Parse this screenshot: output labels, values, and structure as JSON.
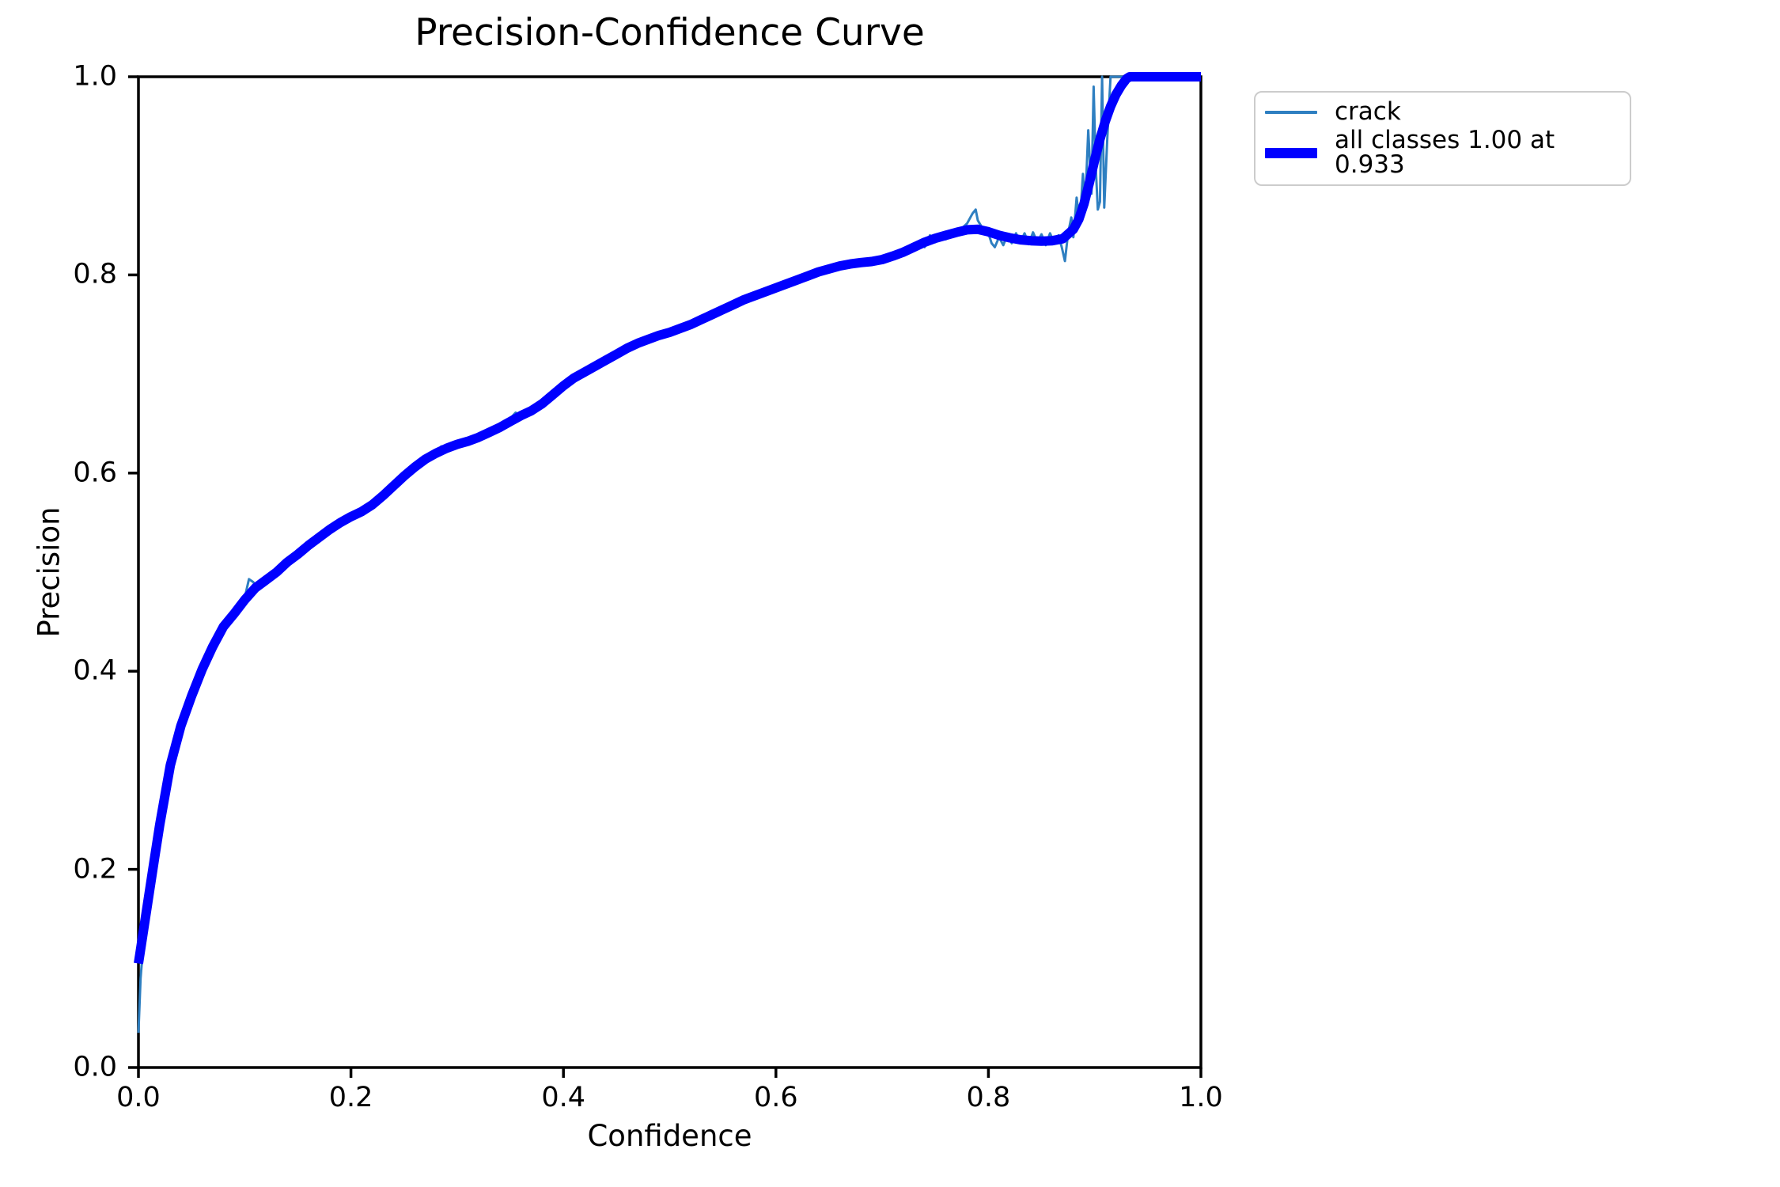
{
  "chart_data": {
    "type": "line",
    "title": "Precision-Confidence Curve",
    "xlabel": "Confidence",
    "ylabel": "Precision",
    "xlim": [
      0,
      1
    ],
    "ylim": [
      0,
      1
    ],
    "xticks": [
      "0.0",
      "0.2",
      "0.4",
      "0.6",
      "0.8",
      "1.0"
    ],
    "yticks": [
      "0.0",
      "0.2",
      "0.4",
      "0.6",
      "0.8",
      "1.0"
    ],
    "grid": false,
    "legend": {
      "position": "upper-right-outside",
      "entries": [
        {
          "label": "crack",
          "color": "#2e7fc1",
          "weight": "thin"
        },
        {
          "label": "all classes 1.00 at 0.933",
          "color": "#0000ff",
          "weight": "thick"
        }
      ]
    },
    "series": [
      {
        "name": "crack",
        "color": "#2e7fc1",
        "linewidth": 3,
        "points": [
          [
            0,
            0.035
          ],
          [
            0.002,
            0.09
          ],
          [
            0.005,
            0.13
          ],
          [
            0.01,
            0.175
          ],
          [
            0.015,
            0.21
          ],
          [
            0.02,
            0.245
          ],
          [
            0.03,
            0.305
          ],
          [
            0.04,
            0.345
          ],
          [
            0.05,
            0.375
          ],
          [
            0.06,
            0.402
          ],
          [
            0.07,
            0.425
          ],
          [
            0.08,
            0.445
          ],
          [
            0.09,
            0.458
          ],
          [
            0.1,
            0.474
          ],
          [
            0.104,
            0.493
          ],
          [
            0.108,
            0.49
          ],
          [
            0.112,
            0.484
          ],
          [
            0.12,
            0.492
          ],
          [
            0.13,
            0.5
          ],
          [
            0.14,
            0.51
          ],
          [
            0.15,
            0.518
          ],
          [
            0.16,
            0.527
          ],
          [
            0.17,
            0.535
          ],
          [
            0.18,
            0.543
          ],
          [
            0.19,
            0.55
          ],
          [
            0.2,
            0.556
          ],
          [
            0.21,
            0.561
          ],
          [
            0.22,
            0.568
          ],
          [
            0.23,
            0.577
          ],
          [
            0.24,
            0.587
          ],
          [
            0.25,
            0.597
          ],
          [
            0.26,
            0.606
          ],
          [
            0.27,
            0.614
          ],
          [
            0.28,
            0.62
          ],
          [
            0.285,
            0.627
          ],
          [
            0.29,
            0.625
          ],
          [
            0.3,
            0.629
          ],
          [
            0.31,
            0.632
          ],
          [
            0.32,
            0.636
          ],
          [
            0.33,
            0.641
          ],
          [
            0.34,
            0.646
          ],
          [
            0.35,
            0.655
          ],
          [
            0.355,
            0.661
          ],
          [
            0.36,
            0.658
          ],
          [
            0.37,
            0.663
          ],
          [
            0.38,
            0.67
          ],
          [
            0.39,
            0.679
          ],
          [
            0.4,
            0.688
          ],
          [
            0.41,
            0.696
          ],
          [
            0.42,
            0.702
          ],
          [
            0.43,
            0.708
          ],
          [
            0.44,
            0.714
          ],
          [
            0.45,
            0.72
          ],
          [
            0.46,
            0.726
          ],
          [
            0.47,
            0.731
          ],
          [
            0.48,
            0.735
          ],
          [
            0.49,
            0.739
          ],
          [
            0.5,
            0.742
          ],
          [
            0.51,
            0.746
          ],
          [
            0.52,
            0.75
          ],
          [
            0.53,
            0.755
          ],
          [
            0.54,
            0.76
          ],
          [
            0.55,
            0.765
          ],
          [
            0.56,
            0.77
          ],
          [
            0.57,
            0.775
          ],
          [
            0.58,
            0.779
          ],
          [
            0.59,
            0.783
          ],
          [
            0.6,
            0.787
          ],
          [
            0.61,
            0.791
          ],
          [
            0.62,
            0.795
          ],
          [
            0.63,
            0.799
          ],
          [
            0.64,
            0.803
          ],
          [
            0.65,
            0.806
          ],
          [
            0.66,
            0.809
          ],
          [
            0.67,
            0.811
          ],
          [
            0.68,
            0.8125
          ],
          [
            0.69,
            0.8135
          ],
          [
            0.7,
            0.8155
          ],
          [
            0.71,
            0.819
          ],
          [
            0.72,
            0.823
          ],
          [
            0.73,
            0.826
          ],
          [
            0.735,
            0.834
          ],
          [
            0.74,
            0.828
          ],
          [
            0.745,
            0.84
          ],
          [
            0.75,
            0.833
          ],
          [
            0.755,
            0.842
          ],
          [
            0.76,
            0.836
          ],
          [
            0.765,
            0.845
          ],
          [
            0.77,
            0.84
          ],
          [
            0.775,
            0.847
          ],
          [
            0.78,
            0.852
          ],
          [
            0.785,
            0.862
          ],
          [
            0.788,
            0.866
          ],
          [
            0.79,
            0.855
          ],
          [
            0.795,
            0.846
          ],
          [
            0.8,
            0.842
          ],
          [
            0.803,
            0.832
          ],
          [
            0.806,
            0.828
          ],
          [
            0.81,
            0.838
          ],
          [
            0.814,
            0.83
          ],
          [
            0.818,
            0.841
          ],
          [
            0.822,
            0.832
          ],
          [
            0.826,
            0.842
          ],
          [
            0.83,
            0.833
          ],
          [
            0.834,
            0.842
          ],
          [
            0.838,
            0.831
          ],
          [
            0.842,
            0.843
          ],
          [
            0.846,
            0.833
          ],
          [
            0.85,
            0.841
          ],
          [
            0.854,
            0.83
          ],
          [
            0.858,
            0.842
          ],
          [
            0.862,
            0.832
          ],
          [
            0.866,
            0.84
          ],
          [
            0.869,
            0.828
          ],
          [
            0.872,
            0.814
          ],
          [
            0.875,
            0.842
          ],
          [
            0.878,
            0.858
          ],
          [
            0.88,
            0.838
          ],
          [
            0.883,
            0.878
          ],
          [
            0.886,
            0.852
          ],
          [
            0.889,
            0.902
          ],
          [
            0.891,
            0.868
          ],
          [
            0.894,
            0.946
          ],
          [
            0.897,
            0.882
          ],
          [
            0.899,
            0.99
          ],
          [
            0.901,
            0.91
          ],
          [
            0.903,
            0.866
          ],
          [
            0.905,
            0.874
          ],
          [
            0.907,
            1
          ],
          [
            0.909,
            0.868
          ],
          [
            0.912,
            0.94
          ],
          [
            0.915,
            1
          ],
          [
            1,
            1
          ]
        ]
      },
      {
        "name": "all classes",
        "color": "#0000ff",
        "linewidth": 12,
        "points": [
          [
            0,
            0.105
          ],
          [
            0.005,
            0.14
          ],
          [
            0.01,
            0.175
          ],
          [
            0.015,
            0.21
          ],
          [
            0.02,
            0.245
          ],
          [
            0.03,
            0.305
          ],
          [
            0.04,
            0.345
          ],
          [
            0.05,
            0.375
          ],
          [
            0.06,
            0.402
          ],
          [
            0.07,
            0.425
          ],
          [
            0.08,
            0.445
          ],
          [
            0.09,
            0.458
          ],
          [
            0.1,
            0.472
          ],
          [
            0.11,
            0.484
          ],
          [
            0.12,
            0.492
          ],
          [
            0.13,
            0.5
          ],
          [
            0.14,
            0.51
          ],
          [
            0.15,
            0.518
          ],
          [
            0.16,
            0.527
          ],
          [
            0.17,
            0.535
          ],
          [
            0.18,
            0.543
          ],
          [
            0.19,
            0.55
          ],
          [
            0.2,
            0.556
          ],
          [
            0.21,
            0.561
          ],
          [
            0.22,
            0.568
          ],
          [
            0.23,
            0.577
          ],
          [
            0.24,
            0.587
          ],
          [
            0.25,
            0.597
          ],
          [
            0.26,
            0.606
          ],
          [
            0.27,
            0.614
          ],
          [
            0.28,
            0.62
          ],
          [
            0.29,
            0.625
          ],
          [
            0.3,
            0.629
          ],
          [
            0.31,
            0.632
          ],
          [
            0.32,
            0.636
          ],
          [
            0.33,
            0.641
          ],
          [
            0.34,
            0.646
          ],
          [
            0.35,
            0.652
          ],
          [
            0.36,
            0.658
          ],
          [
            0.37,
            0.663
          ],
          [
            0.38,
            0.67
          ],
          [
            0.39,
            0.679
          ],
          [
            0.4,
            0.688
          ],
          [
            0.41,
            0.696
          ],
          [
            0.42,
            0.702
          ],
          [
            0.43,
            0.708
          ],
          [
            0.44,
            0.714
          ],
          [
            0.45,
            0.72
          ],
          [
            0.46,
            0.726
          ],
          [
            0.47,
            0.731
          ],
          [
            0.48,
            0.735
          ],
          [
            0.49,
            0.739
          ],
          [
            0.5,
            0.742
          ],
          [
            0.51,
            0.746
          ],
          [
            0.52,
            0.75
          ],
          [
            0.53,
            0.755
          ],
          [
            0.54,
            0.76
          ],
          [
            0.55,
            0.765
          ],
          [
            0.56,
            0.77
          ],
          [
            0.57,
            0.775
          ],
          [
            0.58,
            0.779
          ],
          [
            0.59,
            0.783
          ],
          [
            0.6,
            0.787
          ],
          [
            0.61,
            0.791
          ],
          [
            0.62,
            0.795
          ],
          [
            0.63,
            0.799
          ],
          [
            0.64,
            0.803
          ],
          [
            0.65,
            0.806
          ],
          [
            0.66,
            0.809
          ],
          [
            0.67,
            0.811
          ],
          [
            0.68,
            0.8125
          ],
          [
            0.69,
            0.8135
          ],
          [
            0.7,
            0.8155
          ],
          [
            0.71,
            0.819
          ],
          [
            0.72,
            0.823
          ],
          [
            0.73,
            0.828
          ],
          [
            0.74,
            0.833
          ],
          [
            0.75,
            0.837
          ],
          [
            0.76,
            0.84
          ],
          [
            0.77,
            0.843
          ],
          [
            0.78,
            0.8455
          ],
          [
            0.79,
            0.846
          ],
          [
            0.8,
            0.8435
          ],
          [
            0.81,
            0.84
          ],
          [
            0.82,
            0.8375
          ],
          [
            0.83,
            0.8355
          ],
          [
            0.84,
            0.8345
          ],
          [
            0.85,
            0.834
          ],
          [
            0.86,
            0.8345
          ],
          [
            0.87,
            0.8365
          ],
          [
            0.88,
            0.846
          ],
          [
            0.885,
            0.856
          ],
          [
            0.89,
            0.872
          ],
          [
            0.895,
            0.893
          ],
          [
            0.9,
            0.916
          ],
          [
            0.905,
            0.937
          ],
          [
            0.91,
            0.955
          ],
          [
            0.915,
            0.97
          ],
          [
            0.92,
            0.982
          ],
          [
            0.925,
            0.991
          ],
          [
            0.93,
            0.998
          ],
          [
            0.933,
            1
          ],
          [
            1,
            1
          ]
        ]
      }
    ]
  }
}
